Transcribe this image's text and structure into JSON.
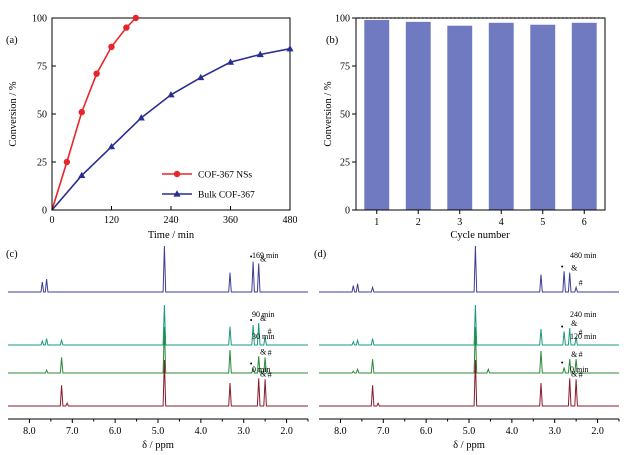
{
  "chart_data": [
    {
      "panel": "(a)",
      "type": "line",
      "xlabel": "Time / min",
      "ylabel": "Conversion / %",
      "xlim": [
        0,
        480
      ],
      "ylim": [
        0,
        100
      ],
      "xticks": [
        "0",
        "120",
        "240",
        "360",
        "480"
      ],
      "yticks": [
        "0",
        "25",
        "50",
        "75",
        "100"
      ],
      "legend_position": "bottom-right",
      "series": [
        {
          "name": "COF-367 NSs",
          "color": "#e8252a",
          "marker": "circle",
          "x": [
            0,
            30,
            60,
            90,
            120,
            150,
            169
          ],
          "y": [
            0,
            25,
            51,
            71,
            85,
            95,
            100
          ]
        },
        {
          "name": "Bulk COF-367",
          "color": "#2a2e8f",
          "marker": "triangle",
          "x": [
            0,
            60,
            120,
            180,
            240,
            300,
            360,
            420,
            480
          ],
          "y": [
            0,
            18,
            33,
            48,
            60,
            69,
            77,
            81,
            84
          ]
        }
      ]
    },
    {
      "panel": "(b)",
      "type": "bar",
      "xlabel": "Cycle number",
      "ylabel": "Conversion / %",
      "ylim": [
        0,
        100
      ],
      "yticks": [
        "0",
        "25",
        "50",
        "75",
        "100"
      ],
      "categories": [
        "1",
        "2",
        "3",
        "4",
        "5",
        "6"
      ],
      "values": [
        99,
        98,
        96,
        97.5,
        96.5,
        97.5
      ],
      "reference_line": 100,
      "bar_color": "#6f7ac0"
    },
    {
      "panel": "(c)",
      "type": "line",
      "subtype": "nmr-stacked",
      "xlabel": "δ / ppm",
      "xlim": [
        8.5,
        1.5
      ],
      "xticks": [
        "8.0",
        "7.0",
        "6.0",
        "5.0",
        "4.0",
        "3.0",
        "2.0"
      ],
      "traces": [
        {
          "label": "169 min",
          "color": "#3b3f96",
          "peaks": [
            [
              7.7,
              0.22
            ],
            [
              7.6,
              0.28
            ],
            [
              4.85,
              1.0
            ],
            [
              3.32,
              0.42
            ],
            [
              2.78,
              0.66
            ],
            [
              2.65,
              0.62
            ]
          ],
          "marks": [
            "•",
            "&"
          ]
        },
        {
          "label": "90 min",
          "color": "#1a9a80",
          "peaks": [
            [
              7.7,
              0.1
            ],
            [
              7.6,
              0.16
            ],
            [
              7.25,
              0.12
            ],
            [
              4.85,
              1.0
            ],
            [
              3.32,
              0.46
            ],
            [
              2.78,
              0.5
            ],
            [
              2.65,
              0.55
            ],
            [
              2.5,
              0.22
            ]
          ],
          "marks": [
            "•",
            "&",
            "#"
          ]
        },
        {
          "label": "30 min",
          "color": "#2a8a3a",
          "peaks": [
            [
              7.6,
              0.06
            ],
            [
              7.25,
              0.34
            ],
            [
              4.85,
              1.0
            ],
            [
              3.32,
              0.5
            ],
            [
              2.78,
              0.1
            ],
            [
              2.65,
              0.36
            ],
            [
              2.5,
              0.34
            ]
          ],
          "marks": [
            "•",
            "&",
            "#"
          ]
        },
        {
          "label": "0 min",
          "color": "#8a1a2a",
          "peaks": [
            [
              7.25,
              0.45
            ],
            [
              7.12,
              0.06
            ],
            [
              4.85,
              1.0
            ],
            [
              3.32,
              0.5
            ],
            [
              2.65,
              0.6
            ],
            [
              2.5,
              0.58
            ]
          ],
          "marks": [
            "&",
            "#"
          ]
        }
      ]
    },
    {
      "panel": "(d)",
      "type": "line",
      "subtype": "nmr-stacked",
      "xlabel": "δ / ppm",
      "xlim": [
        8.5,
        1.5
      ],
      "xticks": [
        "8.0",
        "7.0",
        "6.0",
        "5.0",
        "4.0",
        "3.0",
        "2.0"
      ],
      "traces": [
        {
          "label": "480 min",
          "color": "#3b3f96",
          "peaks": [
            [
              7.7,
              0.14
            ],
            [
              7.6,
              0.18
            ],
            [
              7.25,
              0.1
            ],
            [
              4.85,
              1.0
            ],
            [
              3.32,
              0.38
            ],
            [
              2.78,
              0.45
            ],
            [
              2.65,
              0.42
            ],
            [
              2.5,
              0.1
            ]
          ],
          "marks": [
            "•",
            "&",
            "#"
          ]
        },
        {
          "label": "240 min",
          "color": "#1a9a80",
          "peaks": [
            [
              7.7,
              0.08
            ],
            [
              7.6,
              0.12
            ],
            [
              7.25,
              0.16
            ],
            [
              4.85,
              1.0
            ],
            [
              3.32,
              0.4
            ],
            [
              2.78,
              0.34
            ],
            [
              2.65,
              0.42
            ],
            [
              2.5,
              0.2
            ]
          ],
          "marks": [
            "•",
            "&",
            "#"
          ]
        },
        {
          "label": "120 min",
          "color": "#2a8a3a",
          "peaks": [
            [
              7.7,
              0.04
            ],
            [
              7.6,
              0.08
            ],
            [
              7.25,
              0.3
            ],
            [
              4.85,
              1.0
            ],
            [
              4.55,
              0.08
            ],
            [
              3.32,
              0.48
            ],
            [
              2.78,
              0.12
            ],
            [
              2.65,
              0.3
            ],
            [
              2.5,
              0.3
            ]
          ],
          "marks": [
            "•",
            "&",
            "#"
          ]
        },
        {
          "label": "0 min",
          "color": "#8a1a2a",
          "peaks": [
            [
              7.25,
              0.45
            ],
            [
              7.12,
              0.06
            ],
            [
              4.85,
              1.0
            ],
            [
              3.32,
              0.5
            ],
            [
              2.65,
              0.6
            ],
            [
              2.5,
              0.58
            ]
          ],
          "marks": [
            "&",
            "#"
          ]
        }
      ]
    }
  ]
}
